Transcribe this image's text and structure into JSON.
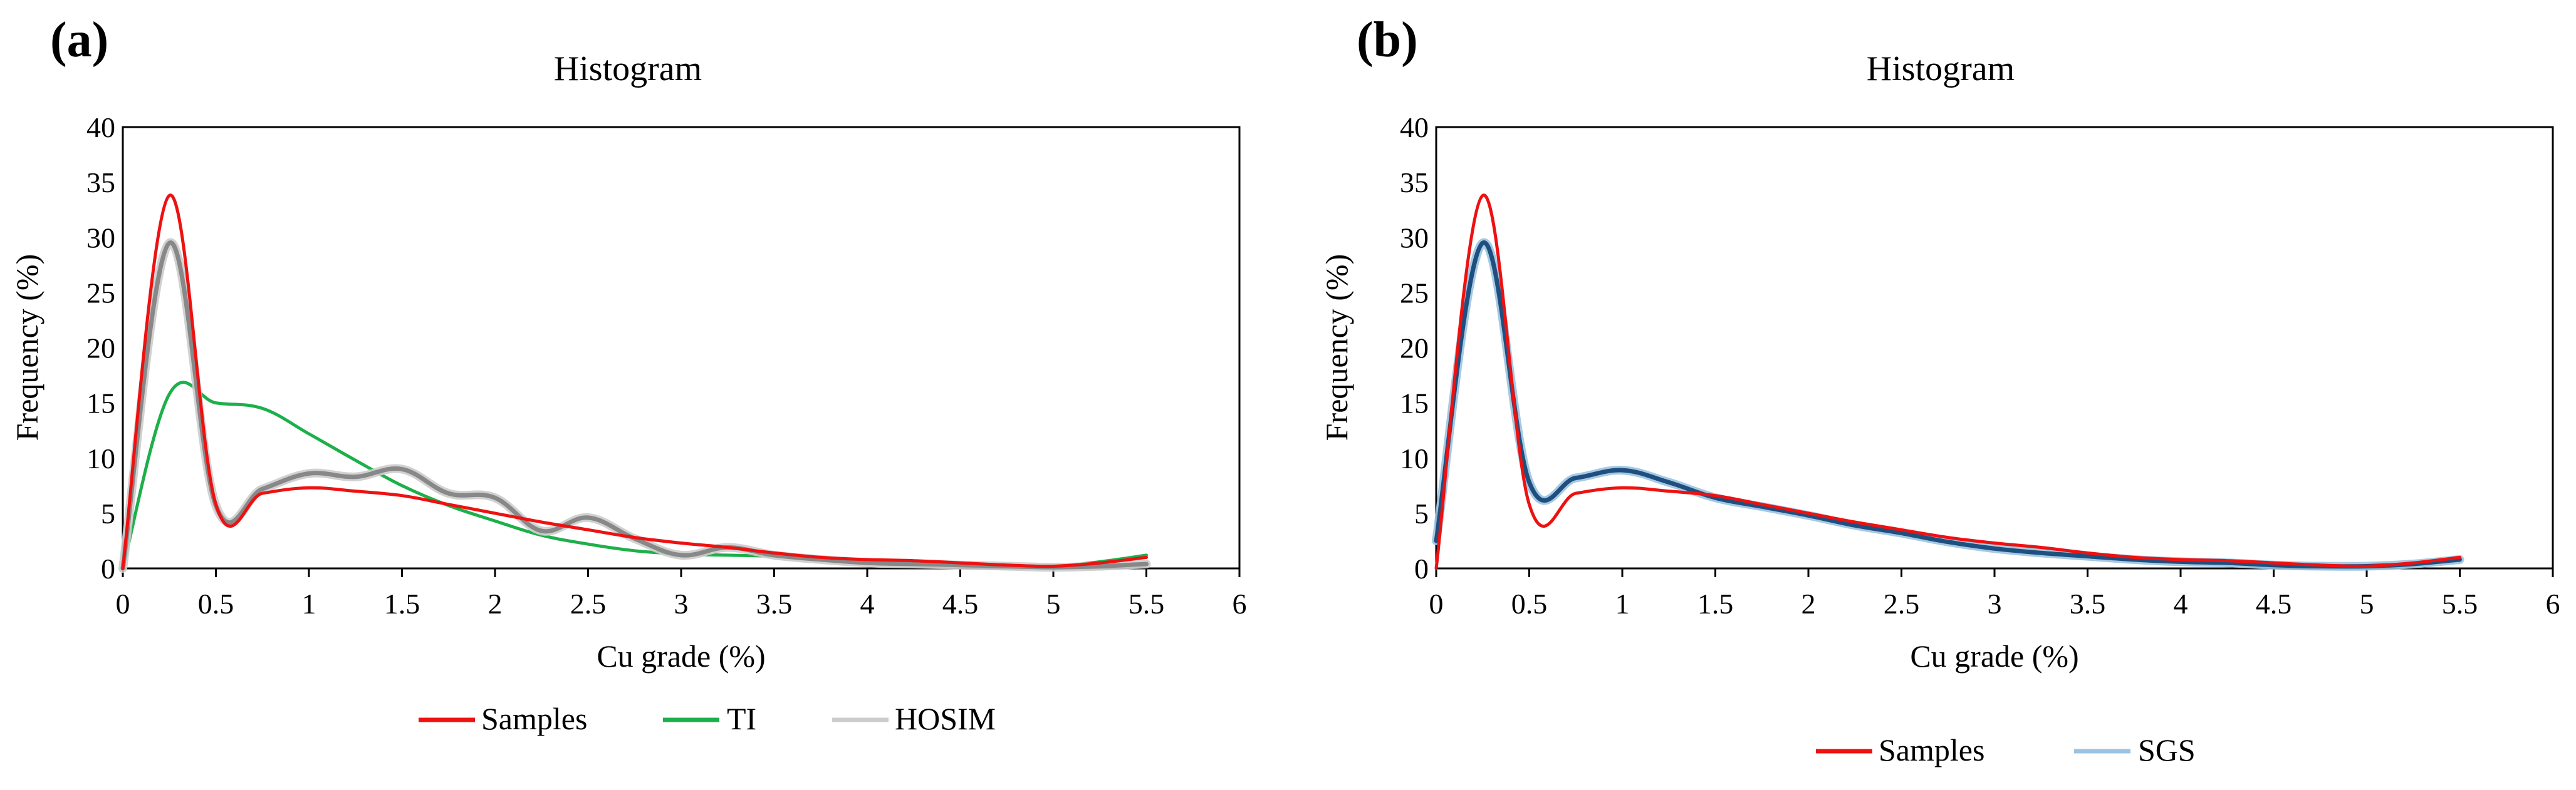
{
  "chart_data": [
    {
      "panel_label": "(a)",
      "type": "line",
      "title": "Histogram",
      "xlabel": "Cu grade (%)",
      "ylabel": "Frequency (%)",
      "xlim": [
        0,
        6
      ],
      "ylim": [
        0,
        40
      ],
      "xticks": [
        "0",
        "0.5",
        "1",
        "1.5",
        "2",
        "2.5",
        "3",
        "3.5",
        "4",
        "4.5",
        "5",
        "5.5",
        "6"
      ],
      "yticks": [
        "0",
        "5",
        "10",
        "15",
        "20",
        "25",
        "30",
        "35",
        "40"
      ],
      "legend_position": "bottom",
      "series": [
        {
          "name": "Samples",
          "color": "#ee1111",
          "x": [
            0,
            0.25,
            0.5,
            0.75,
            1,
            1.25,
            1.5,
            1.75,
            2,
            2.25,
            2.5,
            2.75,
            3,
            3.25,
            3.5,
            3.75,
            4,
            4.25,
            4.5,
            4.75,
            5,
            5.25,
            5.5
          ],
          "y": [
            0,
            33.8,
            5.8,
            6.8,
            7.3,
            7.0,
            6.6,
            5.8,
            5.0,
            4.2,
            3.5,
            2.8,
            2.3,
            1.9,
            1.4,
            1.0,
            0.8,
            0.7,
            0.5,
            0.3,
            0.2,
            0.5,
            1.0
          ]
        },
        {
          "name": "TI",
          "color": "#1db04a",
          "x": [
            0,
            0.25,
            0.5,
            0.75,
            1,
            1.25,
            1.5,
            1.75,
            2,
            2.25,
            2.5,
            2.75,
            3,
            3.25,
            3.5,
            3.75,
            4,
            4.25,
            4.5,
            4.75,
            5,
            5.25,
            5.5
          ],
          "y": [
            0,
            15.8,
            15.0,
            14.5,
            12.2,
            9.8,
            7.5,
            5.7,
            4.3,
            3.0,
            2.2,
            1.6,
            1.3,
            1.2,
            1.1,
            0.9,
            0.7,
            0.5,
            0.3,
            0.2,
            0.2,
            0.6,
            1.2
          ]
        },
        {
          "name": "HOSIM",
          "color": "#888888",
          "legend_color": "#cccccc",
          "x": [
            0,
            0.25,
            0.5,
            0.75,
            1,
            1.25,
            1.5,
            1.75,
            2,
            2.25,
            2.5,
            2.75,
            3,
            3.25,
            3.5,
            3.75,
            4,
            4.25,
            4.5,
            4.75,
            5,
            5.25,
            5.5
          ],
          "y": [
            0,
            29.5,
            5.7,
            7.2,
            8.6,
            8.3,
            9.0,
            6.8,
            6.4,
            3.4,
            4.6,
            2.7,
            1.2,
            1.9,
            1.2,
            0.8,
            0.5,
            0.4,
            0.3,
            0.2,
            0.1,
            0.2,
            0.4
          ]
        }
      ]
    },
    {
      "panel_label": "(b)",
      "type": "line",
      "title": "Histogram",
      "xlabel": "Cu grade (%)",
      "ylabel": "Frequency (%)",
      "xlim": [
        0,
        6
      ],
      "ylim": [
        0,
        40
      ],
      "xticks": [
        "0",
        "0.5",
        "1",
        "1.5",
        "2",
        "2.5",
        "3",
        "3.5",
        "4",
        "4.5",
        "5",
        "5.5",
        "6"
      ],
      "yticks": [
        "0",
        "5",
        "10",
        "15",
        "20",
        "25",
        "30",
        "35",
        "40"
      ],
      "legend_position": "bottom",
      "series": [
        {
          "name": "Samples",
          "color": "#ee1111",
          "x": [
            0,
            0.25,
            0.5,
            0.75,
            1,
            1.25,
            1.5,
            1.75,
            2,
            2.25,
            2.5,
            2.75,
            3,
            3.25,
            3.5,
            3.75,
            4,
            4.25,
            4.5,
            4.75,
            5,
            5.25,
            5.5
          ],
          "y": [
            0,
            33.8,
            5.8,
            6.8,
            7.3,
            7.0,
            6.6,
            5.8,
            5.0,
            4.2,
            3.5,
            2.8,
            2.3,
            1.9,
            1.4,
            1.0,
            0.8,
            0.7,
            0.5,
            0.3,
            0.2,
            0.5,
            1.0
          ]
        },
        {
          "name": "SGS",
          "color": "#1e4f7f",
          "legend_color": "#9cc3e0",
          "x": [
            0,
            0.25,
            0.5,
            0.75,
            1,
            1.25,
            1.5,
            1.75,
            2,
            2.25,
            2.5,
            2.75,
            3,
            3.25,
            3.5,
            3.75,
            4,
            4.25,
            4.5,
            4.75,
            5,
            5.25,
            5.5
          ],
          "y": [
            2.5,
            29.5,
            7.8,
            8.2,
            8.9,
            7.8,
            6.4,
            5.6,
            4.8,
            3.9,
            3.2,
            2.4,
            1.8,
            1.4,
            1.1,
            0.8,
            0.6,
            0.5,
            0.3,
            0.2,
            0.2,
            0.4,
            0.8
          ]
        }
      ]
    }
  ]
}
